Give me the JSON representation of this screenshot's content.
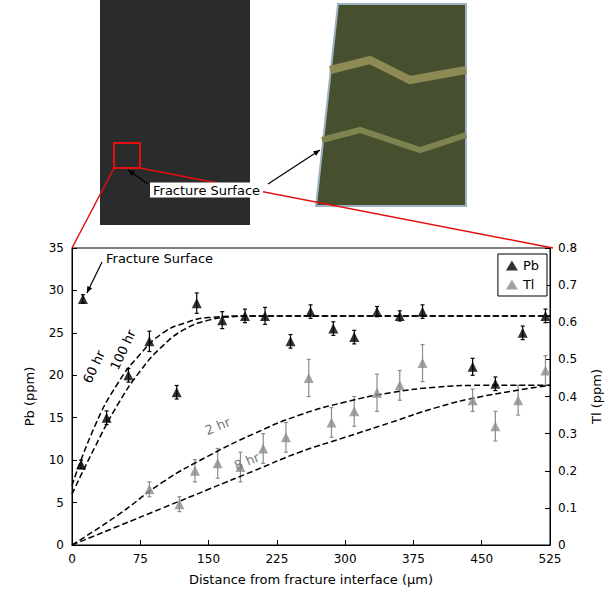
{
  "chart_data": {
    "type": "scatter",
    "xlabel": "Distance from fracture interface (µm)",
    "ylabel": "Pb (ppm)",
    "y2label": "Tl (ppm)",
    "xlim": [
      0,
      525
    ],
    "xticks": [
      0,
      75,
      150,
      225,
      300,
      375,
      450,
      525
    ],
    "ylim": [
      0,
      35
    ],
    "yticks": [
      0,
      5,
      10,
      15,
      20,
      25,
      30,
      35
    ],
    "y2lim": [
      0,
      0.8
    ],
    "y2ticks": [
      0,
      0.1,
      0.2,
      0.3,
      0.4,
      0.5,
      0.6,
      0.7,
      0.8
    ],
    "legend": "upper right",
    "grid": false,
    "annotations": [
      "Fracture Surface",
      "Fracture Surface"
    ],
    "series": [
      {
        "name": "Pb",
        "type": "scatter",
        "color": "#000000",
        "marker": "triangle",
        "x": [
          10,
          12,
          38,
          62,
          85,
          115,
          137,
          165,
          190,
          212,
          240,
          262,
          287,
          310,
          335,
          360,
          385,
          440,
          465,
          495,
          520
        ],
        "values": [
          9.5,
          29,
          15,
          20,
          24,
          18,
          28.5,
          26.5,
          27,
          27,
          24,
          27.5,
          25.5,
          24.5,
          27.5,
          27,
          27.5,
          21,
          19,
          25,
          27
        ],
        "errors": [
          0.5,
          0.5,
          0.8,
          0.8,
          1.2,
          0.8,
          1.2,
          1.0,
          0.8,
          1.0,
          0.8,
          0.8,
          0.8,
          0.8,
          0.6,
          0.6,
          0.8,
          1.0,
          0.8,
          0.8,
          0.8
        ]
      },
      {
        "name": "Tl",
        "type": "scatter",
        "color": "#8c8c8c",
        "marker": "triangle",
        "axis": "y2",
        "x": [
          85,
          118,
          135,
          160,
          185,
          210,
          235,
          260,
          285,
          310,
          335,
          360,
          385,
          440,
          465,
          490,
          520
        ],
        "values": [
          0.15,
          0.11,
          0.2,
          0.22,
          0.21,
          0.26,
          0.29,
          0.45,
          0.33,
          0.36,
          0.41,
          0.43,
          0.49,
          0.39,
          0.32,
          0.39,
          0.47
        ],
        "errors": [
          0.02,
          0.02,
          0.03,
          0.04,
          0.04,
          0.04,
          0.04,
          0.05,
          0.04,
          0.04,
          0.05,
          0.04,
          0.05,
          0.03,
          0.04,
          0.04,
          0.04
        ]
      },
      {
        "name": "60 hr",
        "type": "line",
        "color": "#000000",
        "line_style": "dashed",
        "x": [
          0,
          25,
          50,
          75,
          100,
          125,
          150,
          200,
          525
        ],
        "values": [
          7,
          14,
          19,
          22.5,
          25,
          26.2,
          26.8,
          27,
          27
        ],
        "label_xy": [
          24,
          21
        ]
      },
      {
        "name": "100 hr",
        "type": "line",
        "color": "#000000",
        "line_style": "dashed",
        "x": [
          0,
          25,
          50,
          75,
          100,
          125,
          150,
          175,
          200,
          525
        ],
        "values": [
          6,
          11.5,
          16.5,
          20.5,
          23.5,
          25.5,
          26.5,
          26.9,
          27,
          27
        ],
        "label_xy": [
          56,
          23
        ]
      },
      {
        "name": "2 hr",
        "type": "line",
        "color": "#000000",
        "line_style": "dashed",
        "axis": "y2",
        "x": [
          0,
          50,
          100,
          150,
          200,
          250,
          300,
          350,
          400,
          450,
          525
        ],
        "values": [
          0,
          0.08,
          0.17,
          0.24,
          0.3,
          0.35,
          0.385,
          0.41,
          0.425,
          0.43,
          0.43
        ],
        "label_xy": [
          160,
          0.32
        ]
      },
      {
        "name": "8 hr",
        "type": "line",
        "color": "#000000",
        "line_style": "dashed",
        "axis": "y2",
        "x": [
          0,
          50,
          100,
          150,
          200,
          250,
          300,
          350,
          400,
          450,
          525
        ],
        "values": [
          0,
          0.05,
          0.1,
          0.15,
          0.2,
          0.25,
          0.29,
          0.33,
          0.37,
          0.4,
          0.43
        ],
        "label_xy": [
          192,
          0.225
        ]
      }
    ]
  }
}
